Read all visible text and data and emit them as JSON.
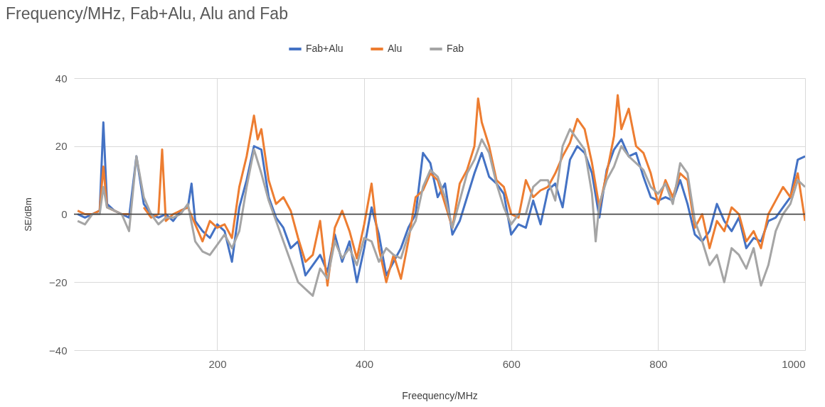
{
  "chart_data": {
    "type": "line",
    "title": "Frequency/MHz, Fab+Alu, Alu and Fab",
    "xlabel": "Freequency/MHz",
    "ylabel": "SE/dBm",
    "xlim": [
      5,
      1000
    ],
    "xticks": [
      200,
      400,
      600,
      800,
      1000
    ],
    "ylim": [
      -40,
      40
    ],
    "yticks": [
      -40,
      -20,
      0,
      20,
      40
    ],
    "grid": true,
    "legend": "top",
    "marker": "none",
    "line_style": "solid",
    "ref_lines": [
      {
        "axis": "y",
        "value": 0,
        "color": "#404040"
      }
    ],
    "series": [
      {
        "name": "Fab+Alu",
        "color": "#4472c4",
        "x": [
          10,
          20,
          30,
          40,
          45,
          50,
          60,
          70,
          80,
          90,
          100,
          110,
          120,
          130,
          140,
          150,
          160,
          165,
          170,
          180,
          190,
          200,
          210,
          220,
          230,
          240,
          250,
          260,
          270,
          280,
          290,
          300,
          310,
          320,
          330,
          340,
          350,
          360,
          370,
          380,
          390,
          400,
          410,
          420,
          430,
          440,
          450,
          460,
          470,
          480,
          490,
          500,
          510,
          520,
          530,
          540,
          550,
          560,
          570,
          580,
          590,
          600,
          610,
          620,
          630,
          640,
          650,
          660,
          670,
          680,
          690,
          700,
          710,
          720,
          730,
          740,
          750,
          760,
          770,
          780,
          790,
          800,
          810,
          820,
          830,
          840,
          850,
          860,
          870,
          880,
          890,
          900,
          910,
          920,
          930,
          940,
          950,
          960,
          970,
          980,
          990,
          1000
        ],
        "values": [
          0,
          -1,
          0,
          1,
          27,
          3,
          1,
          0,
          -1,
          17,
          3,
          0,
          -1,
          0,
          -2,
          1,
          2,
          9,
          -2,
          -5,
          -7,
          -3,
          -5,
          -14,
          2,
          10,
          20,
          19,
          5,
          -1,
          -4,
          -10,
          -8,
          -18,
          -15,
          -12,
          -17,
          -6,
          -14,
          -8,
          -20,
          -10,
          2,
          -6,
          -18,
          -14,
          -10,
          -4,
          0,
          18,
          15,
          5,
          9,
          -6,
          -2,
          5,
          12,
          18,
          11,
          9,
          6,
          -6,
          -3,
          -4,
          4,
          -3,
          7,
          9,
          2,
          16,
          20,
          18,
          12,
          -1,
          13,
          19,
          22,
          17,
          18,
          11,
          5,
          4,
          5,
          4,
          10,
          3,
          -6,
          -8,
          -5,
          3,
          -2,
          -5,
          -1,
          -10,
          -7,
          -8,
          -2,
          -1,
          2,
          5,
          16,
          17
        ]
      },
      {
        "name": "Alu",
        "color": "#ed7d31",
        "x": [
          10,
          20,
          30,
          40,
          45,
          50,
          60,
          70,
          80,
          90,
          100,
          110,
          120,
          125,
          130,
          140,
          150,
          160,
          170,
          180,
          190,
          200,
          210,
          220,
          230,
          240,
          250,
          255,
          260,
          270,
          280,
          290,
          300,
          310,
          320,
          330,
          340,
          350,
          360,
          370,
          380,
          390,
          400,
          410,
          420,
          430,
          440,
          450,
          460,
          470,
          480,
          490,
          500,
          510,
          520,
          530,
          540,
          550,
          555,
          560,
          570,
          580,
          590,
          600,
          610,
          620,
          630,
          640,
          650,
          660,
          670,
          680,
          690,
          700,
          710,
          720,
          730,
          740,
          745,
          750,
          760,
          770,
          780,
          790,
          800,
          810,
          820,
          830,
          840,
          850,
          860,
          870,
          880,
          890,
          900,
          910,
          920,
          930,
          940,
          950,
          960,
          970,
          980,
          990,
          1000
        ],
        "values": [
          1,
          0,
          0,
          1,
          14,
          2,
          1,
          0,
          0,
          null,
          2,
          -1,
          0,
          19,
          -2,
          0,
          1,
          2,
          -3,
          -8,
          -2,
          -4,
          -3,
          -7,
          8,
          17,
          29,
          22,
          25,
          10,
          3,
          5,
          1,
          -7,
          -14,
          -12,
          -2,
          -21,
          -4,
          1,
          -5,
          -13,
          -3,
          9,
          -10,
          -20,
          -12,
          -19,
          -8,
          5,
          7,
          12,
          10,
          3,
          -4,
          9,
          13,
          20,
          34,
          27,
          20,
          10,
          8,
          0,
          -1,
          10,
          5,
          7,
          8,
          12,
          17,
          21,
          28,
          25,
          15,
          2,
          12,
          23,
          35,
          25,
          31,
          20,
          18,
          12,
          3,
          10,
          5,
          12,
          10,
          -4,
          0,
          -10,
          -2,
          -5,
          2,
          0,
          -8,
          -5,
          -10,
          0,
          4,
          8,
          5,
          12,
          -2
        ]
      },
      {
        "name": "Fab",
        "color": "#a5a5a5",
        "x": [
          10,
          20,
          30,
          40,
          45,
          50,
          60,
          70,
          80,
          90,
          100,
          110,
          120,
          130,
          140,
          150,
          160,
          170,
          180,
          190,
          200,
          210,
          220,
          230,
          240,
          250,
          260,
          270,
          280,
          290,
          300,
          310,
          320,
          330,
          340,
          350,
          360,
          370,
          380,
          390,
          400,
          410,
          420,
          430,
          440,
          450,
          460,
          470,
          480,
          490,
          500,
          510,
          520,
          530,
          540,
          550,
          560,
          570,
          580,
          590,
          600,
          610,
          620,
          630,
          640,
          650,
          660,
          670,
          680,
          690,
          700,
          710,
          715,
          720,
          730,
          740,
          750,
          760,
          770,
          780,
          790,
          800,
          810,
          820,
          830,
          840,
          850,
          860,
          870,
          880,
          890,
          900,
          910,
          920,
          930,
          940,
          950,
          960,
          970,
          980,
          990,
          1000
        ],
        "values": [
          -2,
          -3,
          0,
          0,
          8,
          2,
          1,
          0,
          -5,
          17,
          5,
          0,
          -3,
          -1,
          -1,
          0,
          3,
          -8,
          -11,
          -12,
          -9,
          -6,
          -10,
          -5,
          8,
          19,
          12,
          4,
          -2,
          -8,
          -14,
          -20,
          -22,
          -24,
          -16,
          -19,
          -8,
          -13,
          -10,
          -15,
          -7,
          -8,
          -14,
          -10,
          -12,
          -13,
          -6,
          -2,
          8,
          13,
          11,
          5,
          -4,
          4,
          12,
          16,
          22,
          18,
          9,
          2,
          -3,
          0,
          0,
          8,
          10,
          10,
          4,
          20,
          25,
          22,
          19,
          6,
          -8,
          3,
          10,
          14,
          20,
          17,
          15,
          13,
          8,
          6,
          9,
          3,
          15,
          12,
          -2,
          -8,
          -15,
          -12,
          -20,
          -10,
          -12,
          -16,
          -10,
          -21,
          -15,
          -5,
          0,
          3,
          10,
          8
        ]
      }
    ]
  }
}
